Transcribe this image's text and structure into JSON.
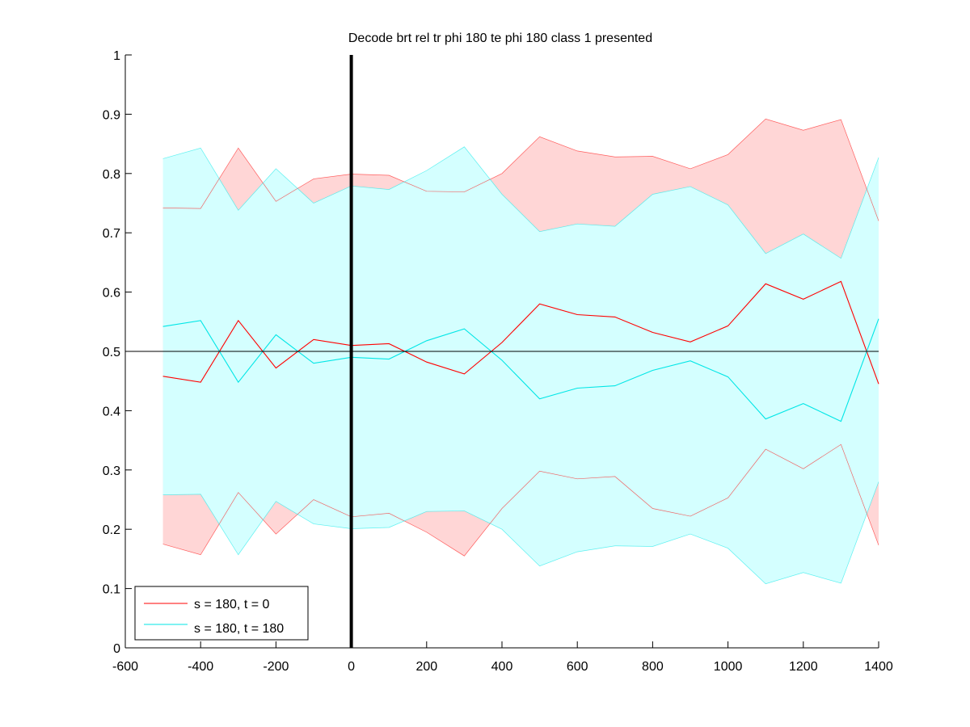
{
  "chart_data": {
    "type": "line",
    "title": "Decode brt rel tr phi 180 te phi 180  class 1 presented",
    "xlabel": "",
    "ylabel": "",
    "xlim": [
      -600,
      1400
    ],
    "ylim": [
      0,
      1
    ],
    "xticks": [
      -600,
      -400,
      -200,
      0,
      200,
      400,
      600,
      800,
      1000,
      1200,
      1400
    ],
    "yticks": [
      0,
      0.1,
      0.2,
      0.3,
      0.4,
      0.5,
      0.6,
      0.7,
      0.8,
      0.9,
      1
    ],
    "xtick_labels": [
      "-600",
      "-400",
      "-200",
      "0",
      "200",
      "400",
      "600",
      "800",
      "1000",
      "1200",
      "1400"
    ],
    "ytick_labels": [
      "0",
      "0.1",
      "0.2",
      "0.3",
      "0.4",
      "0.5",
      "0.6",
      "0.7",
      "0.8",
      "0.9",
      "1"
    ],
    "grid": false,
    "legend_position": "bottom-left",
    "reference_lines": {
      "horizontal_y": 0.5,
      "vertical_x": 0
    },
    "x": [
      -500,
      -400,
      -300,
      -200,
      -100,
      0,
      100,
      200,
      300,
      400,
      500,
      600,
      700,
      800,
      900,
      1000,
      1100,
      1200,
      1300,
      1400
    ],
    "series": [
      {
        "name": "s = 180, t = 0",
        "color": "#ff0000",
        "band_color": "#ffd6d6",
        "mean": [
          0.458,
          0.448,
          0.552,
          0.472,
          0.52,
          0.51,
          0.513,
          0.482,
          0.462,
          0.515,
          0.58,
          0.562,
          0.558,
          0.532,
          0.516,
          0.543,
          0.614,
          0.588,
          0.618,
          0.445
        ],
        "upper": [
          0.742,
          0.741,
          0.843,
          0.753,
          0.791,
          0.799,
          0.797,
          0.77,
          0.769,
          0.8,
          0.862,
          0.838,
          0.828,
          0.829,
          0.808,
          0.832,
          0.892,
          0.873,
          0.891,
          0.72
        ],
        "lower": [
          0.175,
          0.157,
          0.262,
          0.192,
          0.25,
          0.221,
          0.227,
          0.195,
          0.155,
          0.235,
          0.298,
          0.285,
          0.289,
          0.235,
          0.222,
          0.253,
          0.335,
          0.302,
          0.343,
          0.173
        ]
      },
      {
        "name": "s = 180, t = 180",
        "color": "#00e6e6",
        "band_color": "#d4ffff",
        "mean": [
          0.542,
          0.552,
          0.448,
          0.528,
          0.48,
          0.49,
          0.487,
          0.518,
          0.538,
          0.485,
          0.42,
          0.438,
          0.442,
          0.468,
          0.484,
          0.457,
          0.386,
          0.412,
          0.382,
          0.555
        ],
        "upper": [
          0.825,
          0.843,
          0.738,
          0.808,
          0.75,
          0.779,
          0.773,
          0.805,
          0.845,
          0.765,
          0.702,
          0.715,
          0.711,
          0.765,
          0.778,
          0.747,
          0.665,
          0.698,
          0.657,
          0.827
        ],
        "lower": [
          0.258,
          0.259,
          0.157,
          0.247,
          0.209,
          0.201,
          0.203,
          0.23,
          0.231,
          0.2,
          0.138,
          0.162,
          0.172,
          0.171,
          0.192,
          0.168,
          0.108,
          0.127,
          0.109,
          0.28
        ]
      }
    ]
  }
}
